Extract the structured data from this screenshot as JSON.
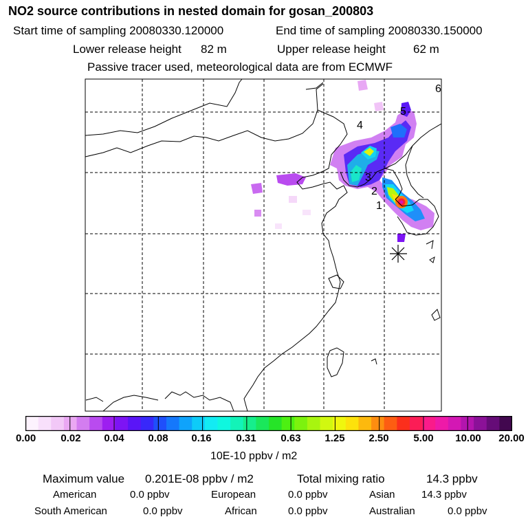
{
  "header": {
    "title": "NO2 source contributions in nested domain for gosan_200803",
    "start_time": "Start time of sampling 20080330.120000",
    "end_time": "End time of sampling 20080330.150000",
    "lower_release": "Lower release height",
    "lower_value": "82 m",
    "upper_release": "Upper release height",
    "upper_value": "62 m",
    "tracer_note": "Passive tracer used, meteorological data are from ECMWF"
  },
  "map": {
    "markers": [
      "1",
      "2",
      "3",
      "4",
      "5",
      "6"
    ],
    "receptor_symbol": "star-icon"
  },
  "colorbar": {
    "colors": [
      "#fdf3fe",
      "#f8e0fb",
      "#f2c8f7",
      "#eaa8f3",
      "#d37df0",
      "#b94bef",
      "#9d1ef0",
      "#7d14f4",
      "#5a15f7",
      "#3828fa",
      "#1f4ffb",
      "#1578fb",
      "#0fa3fb",
      "#0ecbf8",
      "#13ebf3",
      "#0ff7df",
      "#13f3b8",
      "#16ee8c",
      "#1ae75b",
      "#26e428",
      "#4df012",
      "#7cf20e",
      "#a8f50f",
      "#d1f810",
      "#f0f70e",
      "#fde20c",
      "#fdb90e",
      "#fd8d10",
      "#fd5d12",
      "#fb2f1c",
      "#fb1d56",
      "#fa1b8a",
      "#ee1aa8",
      "#d318b4",
      "#b315ae",
      "#8b1198",
      "#660c78",
      "#42084f"
    ],
    "tick_labels": [
      "0.00",
      "0.02",
      "0.04",
      "0.08",
      "0.16",
      "0.31",
      "0.63",
      "1.25",
      "2.50",
      "5.00",
      "10.00",
      "20.00"
    ],
    "units": "10E-10 ppbv / m2"
  },
  "summary": {
    "max_label": "Maximum value",
    "max_value": "0.201E-08 ppbv / m2",
    "total_label": "Total mixing ratio",
    "total_value": "14.3 ppbv",
    "american_label": "American",
    "american_value": "0.0 ppbv",
    "european_label": "European",
    "european_value": "0.0 ppbv",
    "asian_label": "Asian",
    "asian_value": "14.3 ppbv",
    "south_american_label": "South American",
    "south_american_value": "0.0 ppbv",
    "african_label": "African",
    "african_value": "0.0 ppbv",
    "australian_label": "Australian",
    "australian_value": "0.0 ppbv"
  }
}
